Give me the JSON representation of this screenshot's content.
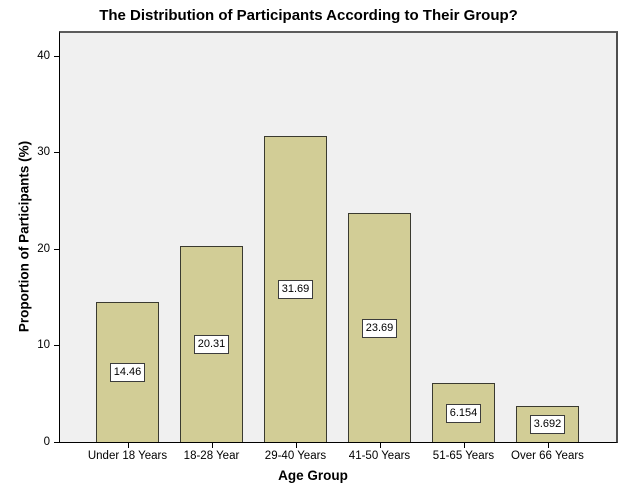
{
  "chart_data": {
    "type": "bar",
    "title": "The Distribution of Participants According to Their Group?",
    "xlabel": "Age Group",
    "ylabel": "Proportion of Participants (%)",
    "categories": [
      "Under 18 Years",
      "18-28 Year",
      "29-40 Years",
      "41-50 Years",
      "51-65 Years",
      "Over 66 Years"
    ],
    "values": [
      14.46,
      20.31,
      31.69,
      23.69,
      6.154,
      3.692
    ],
    "value_labels": [
      "14.46",
      "20.31",
      "31.69",
      "23.69",
      "6.154",
      "3.692"
    ],
    "yticks": [
      0,
      10,
      20,
      30,
      40
    ],
    "ylim": [
      0,
      42.4
    ],
    "grid": false,
    "legend": false,
    "colors": {
      "bar_fill": "#d2cd96",
      "bar_border": "#3a3a30",
      "plot_bg": "#f0f0f0",
      "frame": "#5c5c5c",
      "axis": "#000000",
      "value_box_bg": "#ffffff",
      "value_box_border": "#3c3c3c",
      "text": "#000000"
    }
  }
}
